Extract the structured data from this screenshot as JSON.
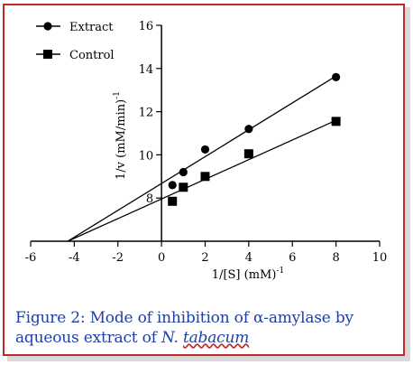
{
  "chart_data": {
    "type": "scatter",
    "title": "",
    "xlabel": "1/[S] (mM)",
    "xlabel_sup": "-1",
    "ylabel": "1/v (mM/min)",
    "ylabel_sup": "-1",
    "xlim": [
      -6,
      10
    ],
    "ylim": [
      6,
      16
    ],
    "x_ticks": [
      "-6",
      "-4",
      "-2",
      "0",
      "2",
      "4",
      "6",
      "8",
      "10"
    ],
    "y_ticks": [
      "8",
      "10",
      "12",
      "14",
      "16"
    ],
    "legend_position": "top-left",
    "grid": false,
    "series": [
      {
        "name": "Extract",
        "marker": "circle",
        "x": [
          0.5,
          1,
          2,
          4,
          8
        ],
        "y": [
          8.6,
          9.2,
          10.25,
          11.2,
          13.6
        ],
        "fit": {
          "x_intercept": -4.3,
          "y_at_max_x": 13.65
        }
      },
      {
        "name": "Control",
        "marker": "square",
        "x": [
          0.5,
          1,
          2,
          4,
          8
        ],
        "y": [
          7.85,
          8.5,
          9.0,
          10.05,
          11.55
        ],
        "fit": {
          "x_intercept": -4.3,
          "y_at_max_x": 11.6
        }
      }
    ]
  },
  "caption": {
    "prefix": "Figure 2: Mode of inhibition of α-amylase by aqueous extract of ",
    "species_genus": "N.",
    "species_name": "tabacum"
  },
  "colors": {
    "border": "#c0292a",
    "caption": "#1f3fa6",
    "ink": "#000000"
  }
}
